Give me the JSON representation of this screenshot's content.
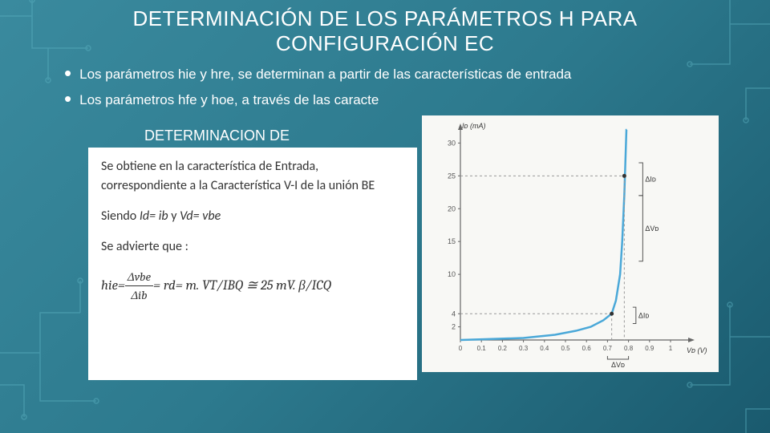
{
  "title": "DETERMINACIÓN DE LOS PARÁMETROS H PARA CONFIGURACIÓN EC",
  "bullets": [
    "Los parámetros hie y hre, se determinan a partir de las características de entrada",
    "Los parámetros hfe y hoe, a través de las caracte"
  ],
  "subtitle": "DETERMINACION DE",
  "textbox": {
    "p1": "Se obtiene en la característica de Entrada, correspondiente a la Característica V-I de la unión BE",
    "p2_prefix": "Siendo ",
    "p2_id": "Id= ib",
    "p2_mid": " y ",
    "p2_vd": "Vd= vbe",
    "p3": "Se advierte que :",
    "formula_lhs": "hie=",
    "formula_num": "Δvbe",
    "formula_den": "Δib",
    "formula_rhs": "= rd= m. VT/IBQ ≅ 25 mV. β/ICQ"
  },
  "chart": {
    "y_label": "I_D (mA)",
    "x_label": "V_D (V)",
    "y_ticks": [
      0,
      2,
      4,
      10,
      15,
      20,
      25,
      30
    ],
    "x_ticks": [
      0,
      0.1,
      0.2,
      0.3,
      0.4,
      0.5,
      0.6,
      0.7,
      0.8,
      0.9,
      1
    ],
    "curve_color": "#4aa8d8",
    "axis_color": "#666666",
    "dash_color": "#999999",
    "q_upper_x": 0.78,
    "q_upper_y": 25,
    "q_lower_x": 0.72,
    "q_lower_y": 4,
    "annot_dId_upper": "ΔI_d",
    "annot_dVd_upper": "ΔV_d",
    "annot_dId_lower": "ΔI_d",
    "annot_dVd_lower": "ΔV_d",
    "curve_points": [
      [
        0,
        0
      ],
      [
        0.3,
        0.3
      ],
      [
        0.45,
        0.8
      ],
      [
        0.55,
        1.4
      ],
      [
        0.62,
        2
      ],
      [
        0.68,
        3
      ],
      [
        0.72,
        4
      ],
      [
        0.74,
        6
      ],
      [
        0.76,
        10
      ],
      [
        0.77,
        15
      ],
      [
        0.78,
        22
      ],
      [
        0.785,
        27
      ],
      [
        0.79,
        32
      ],
      [
        0.792,
        35
      ]
    ]
  }
}
